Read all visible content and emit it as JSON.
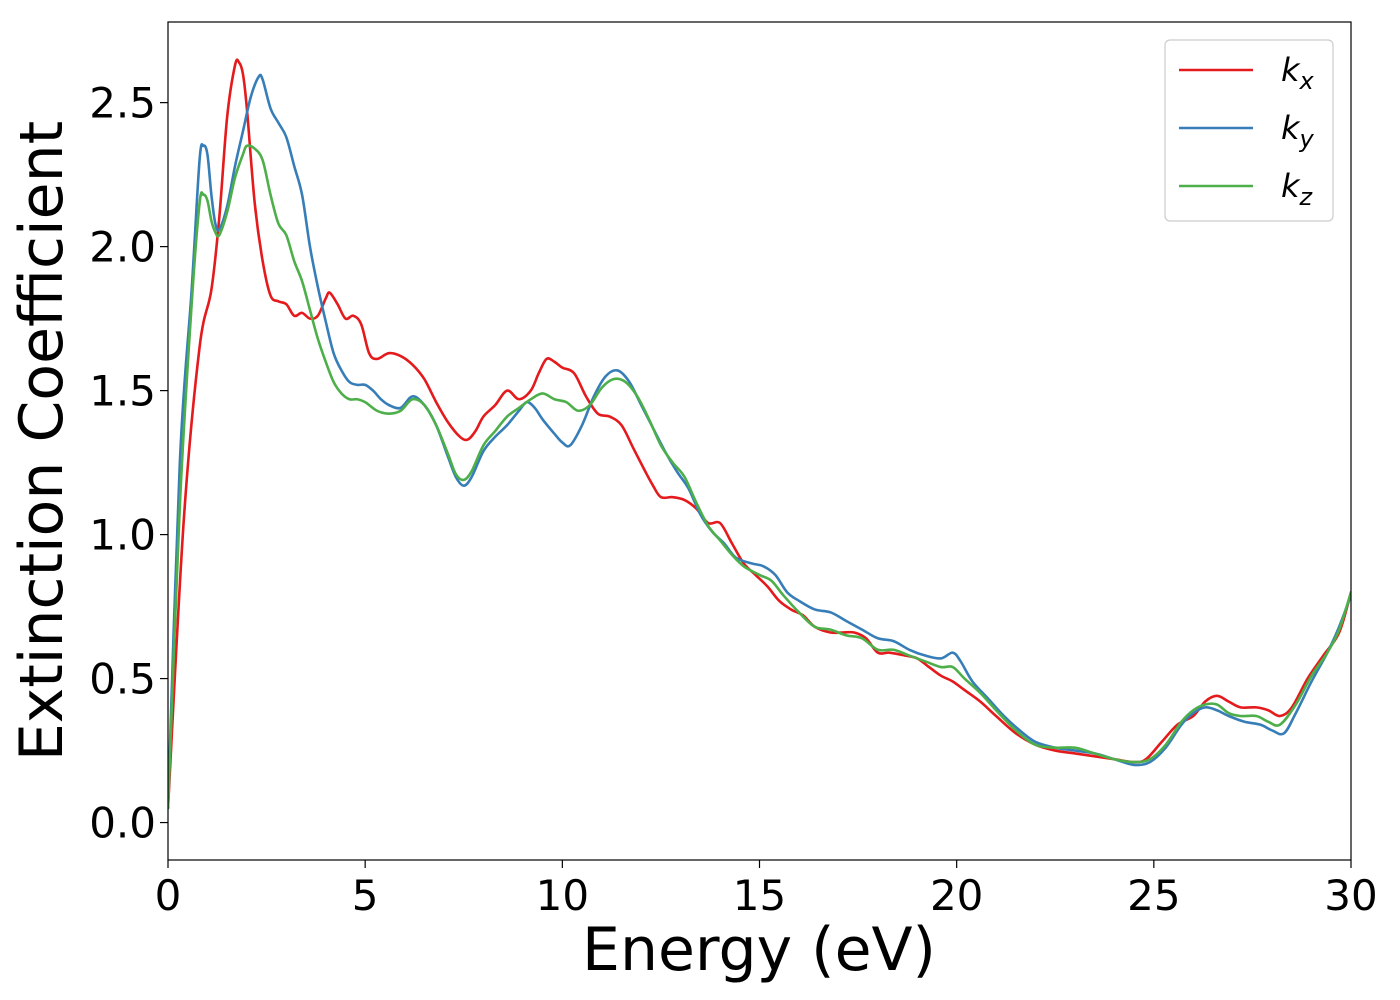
{
  "chart_data": {
    "type": "line",
    "xlabel": "Energy (eV)",
    "ylabel": "Extinction Coefficient",
    "xlim": [
      0,
      30
    ],
    "ylim": [
      -0.13,
      2.78
    ],
    "xticks": [
      0,
      5,
      10,
      15,
      20,
      25,
      30
    ],
    "xtick_labels": [
      "0",
      "5",
      "10",
      "15",
      "20",
      "25",
      "30"
    ],
    "yticks": [
      0.0,
      0.5,
      1.0,
      1.5,
      2.0,
      2.5
    ],
    "ytick_labels": [
      "0.0",
      "0.5",
      "1.0",
      "1.5",
      "2.0",
      "2.5"
    ],
    "grid": false,
    "legend_position": "top-right",
    "series": [
      {
        "name": "k_x",
        "label_main": "k",
        "label_sub": "x",
        "color": "#e41a1c",
        "points": [
          [
            0,
            0.05
          ],
          [
            0.4,
            1.05
          ],
          [
            0.8,
            1.65
          ],
          [
            1.1,
            1.85
          ],
          [
            1.3,
            2.1
          ],
          [
            1.5,
            2.45
          ],
          [
            1.7,
            2.63
          ],
          [
            1.8,
            2.64
          ],
          [
            1.9,
            2.6
          ],
          [
            2.0,
            2.48
          ],
          [
            2.2,
            2.15
          ],
          [
            2.4,
            1.95
          ],
          [
            2.6,
            1.83
          ],
          [
            2.8,
            1.81
          ],
          [
            3.0,
            1.8
          ],
          [
            3.2,
            1.76
          ],
          [
            3.4,
            1.77
          ],
          [
            3.6,
            1.75
          ],
          [
            3.8,
            1.76
          ],
          [
            4.0,
            1.82
          ],
          [
            4.1,
            1.84
          ],
          [
            4.3,
            1.8
          ],
          [
            4.5,
            1.75
          ],
          [
            4.7,
            1.76
          ],
          [
            4.9,
            1.73
          ],
          [
            5.1,
            1.63
          ],
          [
            5.3,
            1.61
          ],
          [
            5.6,
            1.63
          ],
          [
            5.9,
            1.62
          ],
          [
            6.2,
            1.59
          ],
          [
            6.5,
            1.54
          ],
          [
            6.8,
            1.46
          ],
          [
            7.1,
            1.39
          ],
          [
            7.4,
            1.34
          ],
          [
            7.6,
            1.33
          ],
          [
            7.8,
            1.36
          ],
          [
            8.0,
            1.41
          ],
          [
            8.3,
            1.45
          ],
          [
            8.6,
            1.5
          ],
          [
            8.9,
            1.47
          ],
          [
            9.2,
            1.5
          ],
          [
            9.4,
            1.56
          ],
          [
            9.6,
            1.61
          ],
          [
            9.8,
            1.6
          ],
          [
            10.0,
            1.58
          ],
          [
            10.3,
            1.56
          ],
          [
            10.6,
            1.48
          ],
          [
            10.9,
            1.42
          ],
          [
            11.2,
            1.41
          ],
          [
            11.5,
            1.38
          ],
          [
            11.8,
            1.3
          ],
          [
            12.1,
            1.22
          ],
          [
            12.3,
            1.17
          ],
          [
            12.5,
            1.13
          ],
          [
            12.8,
            1.13
          ],
          [
            13.1,
            1.12
          ],
          [
            13.4,
            1.09
          ],
          [
            13.7,
            1.04
          ],
          [
            14.0,
            1.04
          ],
          [
            14.3,
            0.97
          ],
          [
            14.6,
            0.9
          ],
          [
            14.9,
            0.86
          ],
          [
            15.2,
            0.82
          ],
          [
            15.5,
            0.77
          ],
          [
            15.8,
            0.74
          ],
          [
            16.1,
            0.72
          ],
          [
            16.4,
            0.68
          ],
          [
            16.8,
            0.66
          ],
          [
            17.1,
            0.66
          ],
          [
            17.4,
            0.66
          ],
          [
            17.7,
            0.64
          ],
          [
            18.0,
            0.59
          ],
          [
            18.3,
            0.59
          ],
          [
            18.7,
            0.58
          ],
          [
            19.0,
            0.57
          ],
          [
            19.3,
            0.54
          ],
          [
            19.6,
            0.51
          ],
          [
            19.9,
            0.49
          ],
          [
            20.2,
            0.46
          ],
          [
            20.6,
            0.42
          ],
          [
            21.0,
            0.37
          ],
          [
            21.5,
            0.31
          ],
          [
            22.0,
            0.27
          ],
          [
            22.5,
            0.25
          ],
          [
            23.0,
            0.24
          ],
          [
            23.5,
            0.23
          ],
          [
            24.0,
            0.22
          ],
          [
            24.5,
            0.21
          ],
          [
            24.8,
            0.22
          ],
          [
            25.2,
            0.28
          ],
          [
            25.6,
            0.34
          ],
          [
            26.0,
            0.37
          ],
          [
            26.3,
            0.42
          ],
          [
            26.6,
            0.44
          ],
          [
            26.9,
            0.42
          ],
          [
            27.2,
            0.4
          ],
          [
            27.6,
            0.4
          ],
          [
            27.9,
            0.39
          ],
          [
            28.2,
            0.37
          ],
          [
            28.5,
            0.4
          ],
          [
            28.9,
            0.5
          ],
          [
            29.3,
            0.58
          ],
          [
            29.7,
            0.66
          ],
          [
            30.0,
            0.8
          ]
        ]
      },
      {
        "name": "k_y",
        "label_main": "k",
        "label_sub": "y",
        "color": "#377eb8",
        "points": [
          [
            0,
            0.05
          ],
          [
            0.3,
            1.25
          ],
          [
            0.6,
            1.85
          ],
          [
            0.8,
            2.3
          ],
          [
            0.9,
            2.35
          ],
          [
            1.0,
            2.32
          ],
          [
            1.1,
            2.18
          ],
          [
            1.2,
            2.08
          ],
          [
            1.3,
            2.06
          ],
          [
            1.5,
            2.14
          ],
          [
            1.7,
            2.28
          ],
          [
            1.9,
            2.4
          ],
          [
            2.1,
            2.52
          ],
          [
            2.3,
            2.59
          ],
          [
            2.4,
            2.58
          ],
          [
            2.6,
            2.48
          ],
          [
            2.8,
            2.43
          ],
          [
            3.0,
            2.38
          ],
          [
            3.2,
            2.28
          ],
          [
            3.4,
            2.18
          ],
          [
            3.6,
            2.0
          ],
          [
            3.8,
            1.86
          ],
          [
            4.0,
            1.74
          ],
          [
            4.2,
            1.63
          ],
          [
            4.4,
            1.57
          ],
          [
            4.6,
            1.53
          ],
          [
            4.8,
            1.52
          ],
          [
            5.0,
            1.52
          ],
          [
            5.2,
            1.5
          ],
          [
            5.4,
            1.47
          ],
          [
            5.6,
            1.45
          ],
          [
            5.9,
            1.44
          ],
          [
            6.2,
            1.48
          ],
          [
            6.5,
            1.45
          ],
          [
            6.8,
            1.38
          ],
          [
            7.1,
            1.27
          ],
          [
            7.3,
            1.2
          ],
          [
            7.5,
            1.17
          ],
          [
            7.7,
            1.2
          ],
          [
            8.0,
            1.29
          ],
          [
            8.3,
            1.34
          ],
          [
            8.6,
            1.38
          ],
          [
            8.9,
            1.43
          ],
          [
            9.1,
            1.46
          ],
          [
            9.3,
            1.44
          ],
          [
            9.5,
            1.4
          ],
          [
            9.8,
            1.35
          ],
          [
            10.0,
            1.32
          ],
          [
            10.2,
            1.31
          ],
          [
            10.5,
            1.38
          ],
          [
            10.8,
            1.48
          ],
          [
            11.1,
            1.55
          ],
          [
            11.4,
            1.57
          ],
          [
            11.7,
            1.53
          ],
          [
            12.0,
            1.45
          ],
          [
            12.3,
            1.37
          ],
          [
            12.6,
            1.29
          ],
          [
            12.9,
            1.22
          ],
          [
            13.2,
            1.16
          ],
          [
            13.5,
            1.07
          ],
          [
            13.8,
            1.01
          ],
          [
            14.1,
            0.97
          ],
          [
            14.4,
            0.92
          ],
          [
            14.8,
            0.9
          ],
          [
            15.1,
            0.89
          ],
          [
            15.4,
            0.86
          ],
          [
            15.7,
            0.8
          ],
          [
            16.0,
            0.77
          ],
          [
            16.4,
            0.74
          ],
          [
            16.8,
            0.73
          ],
          [
            17.2,
            0.7
          ],
          [
            17.6,
            0.67
          ],
          [
            18.0,
            0.64
          ],
          [
            18.4,
            0.63
          ],
          [
            18.8,
            0.6
          ],
          [
            19.2,
            0.58
          ],
          [
            19.6,
            0.57
          ],
          [
            19.9,
            0.59
          ],
          [
            20.1,
            0.56
          ],
          [
            20.4,
            0.49
          ],
          [
            20.8,
            0.43
          ],
          [
            21.2,
            0.37
          ],
          [
            21.6,
            0.32
          ],
          [
            22.0,
            0.28
          ],
          [
            22.5,
            0.26
          ],
          [
            23.0,
            0.25
          ],
          [
            23.5,
            0.24
          ],
          [
            24.0,
            0.22
          ],
          [
            24.5,
            0.2
          ],
          [
            24.9,
            0.21
          ],
          [
            25.3,
            0.26
          ],
          [
            25.7,
            0.34
          ],
          [
            26.0,
            0.38
          ],
          [
            26.3,
            0.4
          ],
          [
            26.6,
            0.39
          ],
          [
            26.9,
            0.37
          ],
          [
            27.3,
            0.35
          ],
          [
            27.7,
            0.34
          ],
          [
            28.0,
            0.32
          ],
          [
            28.3,
            0.31
          ],
          [
            28.6,
            0.38
          ],
          [
            29.0,
            0.49
          ],
          [
            29.4,
            0.59
          ],
          [
            29.7,
            0.68
          ],
          [
            30.0,
            0.79
          ]
        ]
      },
      {
        "name": "k_z",
        "label_main": "k",
        "label_sub": "z",
        "color": "#4daf4a",
        "points": [
          [
            0,
            0.05
          ],
          [
            0.3,
            1.1
          ],
          [
            0.6,
            1.8
          ],
          [
            0.8,
            2.15
          ],
          [
            0.9,
            2.18
          ],
          [
            1.0,
            2.16
          ],
          [
            1.1,
            2.09
          ],
          [
            1.2,
            2.05
          ],
          [
            1.3,
            2.04
          ],
          [
            1.5,
            2.12
          ],
          [
            1.7,
            2.24
          ],
          [
            1.9,
            2.32
          ],
          [
            2.0,
            2.35
          ],
          [
            2.2,
            2.34
          ],
          [
            2.4,
            2.3
          ],
          [
            2.6,
            2.18
          ],
          [
            2.8,
            2.08
          ],
          [
            3.0,
            2.04
          ],
          [
            3.2,
            1.95
          ],
          [
            3.4,
            1.88
          ],
          [
            3.6,
            1.78
          ],
          [
            3.8,
            1.68
          ],
          [
            4.0,
            1.6
          ],
          [
            4.2,
            1.53
          ],
          [
            4.4,
            1.49
          ],
          [
            4.6,
            1.47
          ],
          [
            4.8,
            1.47
          ],
          [
            5.0,
            1.46
          ],
          [
            5.3,
            1.43
          ],
          [
            5.6,
            1.42
          ],
          [
            5.9,
            1.43
          ],
          [
            6.2,
            1.47
          ],
          [
            6.5,
            1.45
          ],
          [
            6.8,
            1.38
          ],
          [
            7.1,
            1.28
          ],
          [
            7.3,
            1.21
          ],
          [
            7.5,
            1.19
          ],
          [
            7.7,
            1.22
          ],
          [
            8.0,
            1.31
          ],
          [
            8.3,
            1.36
          ],
          [
            8.6,
            1.41
          ],
          [
            8.9,
            1.44
          ],
          [
            9.2,
            1.47
          ],
          [
            9.5,
            1.49
          ],
          [
            9.8,
            1.47
          ],
          [
            10.1,
            1.46
          ],
          [
            10.4,
            1.43
          ],
          [
            10.7,
            1.45
          ],
          [
            11.0,
            1.51
          ],
          [
            11.3,
            1.54
          ],
          [
            11.6,
            1.53
          ],
          [
            11.9,
            1.48
          ],
          [
            12.2,
            1.4
          ],
          [
            12.5,
            1.31
          ],
          [
            12.8,
            1.25
          ],
          [
            13.1,
            1.2
          ],
          [
            13.4,
            1.11
          ],
          [
            13.7,
            1.03
          ],
          [
            14.0,
            0.98
          ],
          [
            14.3,
            0.93
          ],
          [
            14.6,
            0.89
          ],
          [
            15.0,
            0.86
          ],
          [
            15.3,
            0.84
          ],
          [
            15.6,
            0.79
          ],
          [
            16.0,
            0.73
          ],
          [
            16.4,
            0.68
          ],
          [
            16.8,
            0.67
          ],
          [
            17.2,
            0.65
          ],
          [
            17.6,
            0.64
          ],
          [
            18.0,
            0.6
          ],
          [
            18.4,
            0.6
          ],
          [
            18.8,
            0.58
          ],
          [
            19.2,
            0.56
          ],
          [
            19.6,
            0.54
          ],
          [
            19.9,
            0.54
          ],
          [
            20.2,
            0.5
          ],
          [
            20.6,
            0.45
          ],
          [
            21.0,
            0.39
          ],
          [
            21.5,
            0.32
          ],
          [
            22.0,
            0.27
          ],
          [
            22.5,
            0.26
          ],
          [
            23.0,
            0.26
          ],
          [
            23.5,
            0.24
          ],
          [
            24.0,
            0.22
          ],
          [
            24.5,
            0.21
          ],
          [
            24.9,
            0.22
          ],
          [
            25.3,
            0.27
          ],
          [
            25.7,
            0.35
          ],
          [
            26.0,
            0.39
          ],
          [
            26.3,
            0.41
          ],
          [
            26.6,
            0.41
          ],
          [
            26.9,
            0.38
          ],
          [
            27.2,
            0.37
          ],
          [
            27.6,
            0.37
          ],
          [
            27.9,
            0.35
          ],
          [
            28.2,
            0.34
          ],
          [
            28.6,
            0.41
          ],
          [
            29.0,
            0.51
          ],
          [
            29.4,
            0.59
          ],
          [
            29.7,
            0.67
          ],
          [
            30.0,
            0.8
          ]
        ]
      }
    ]
  }
}
